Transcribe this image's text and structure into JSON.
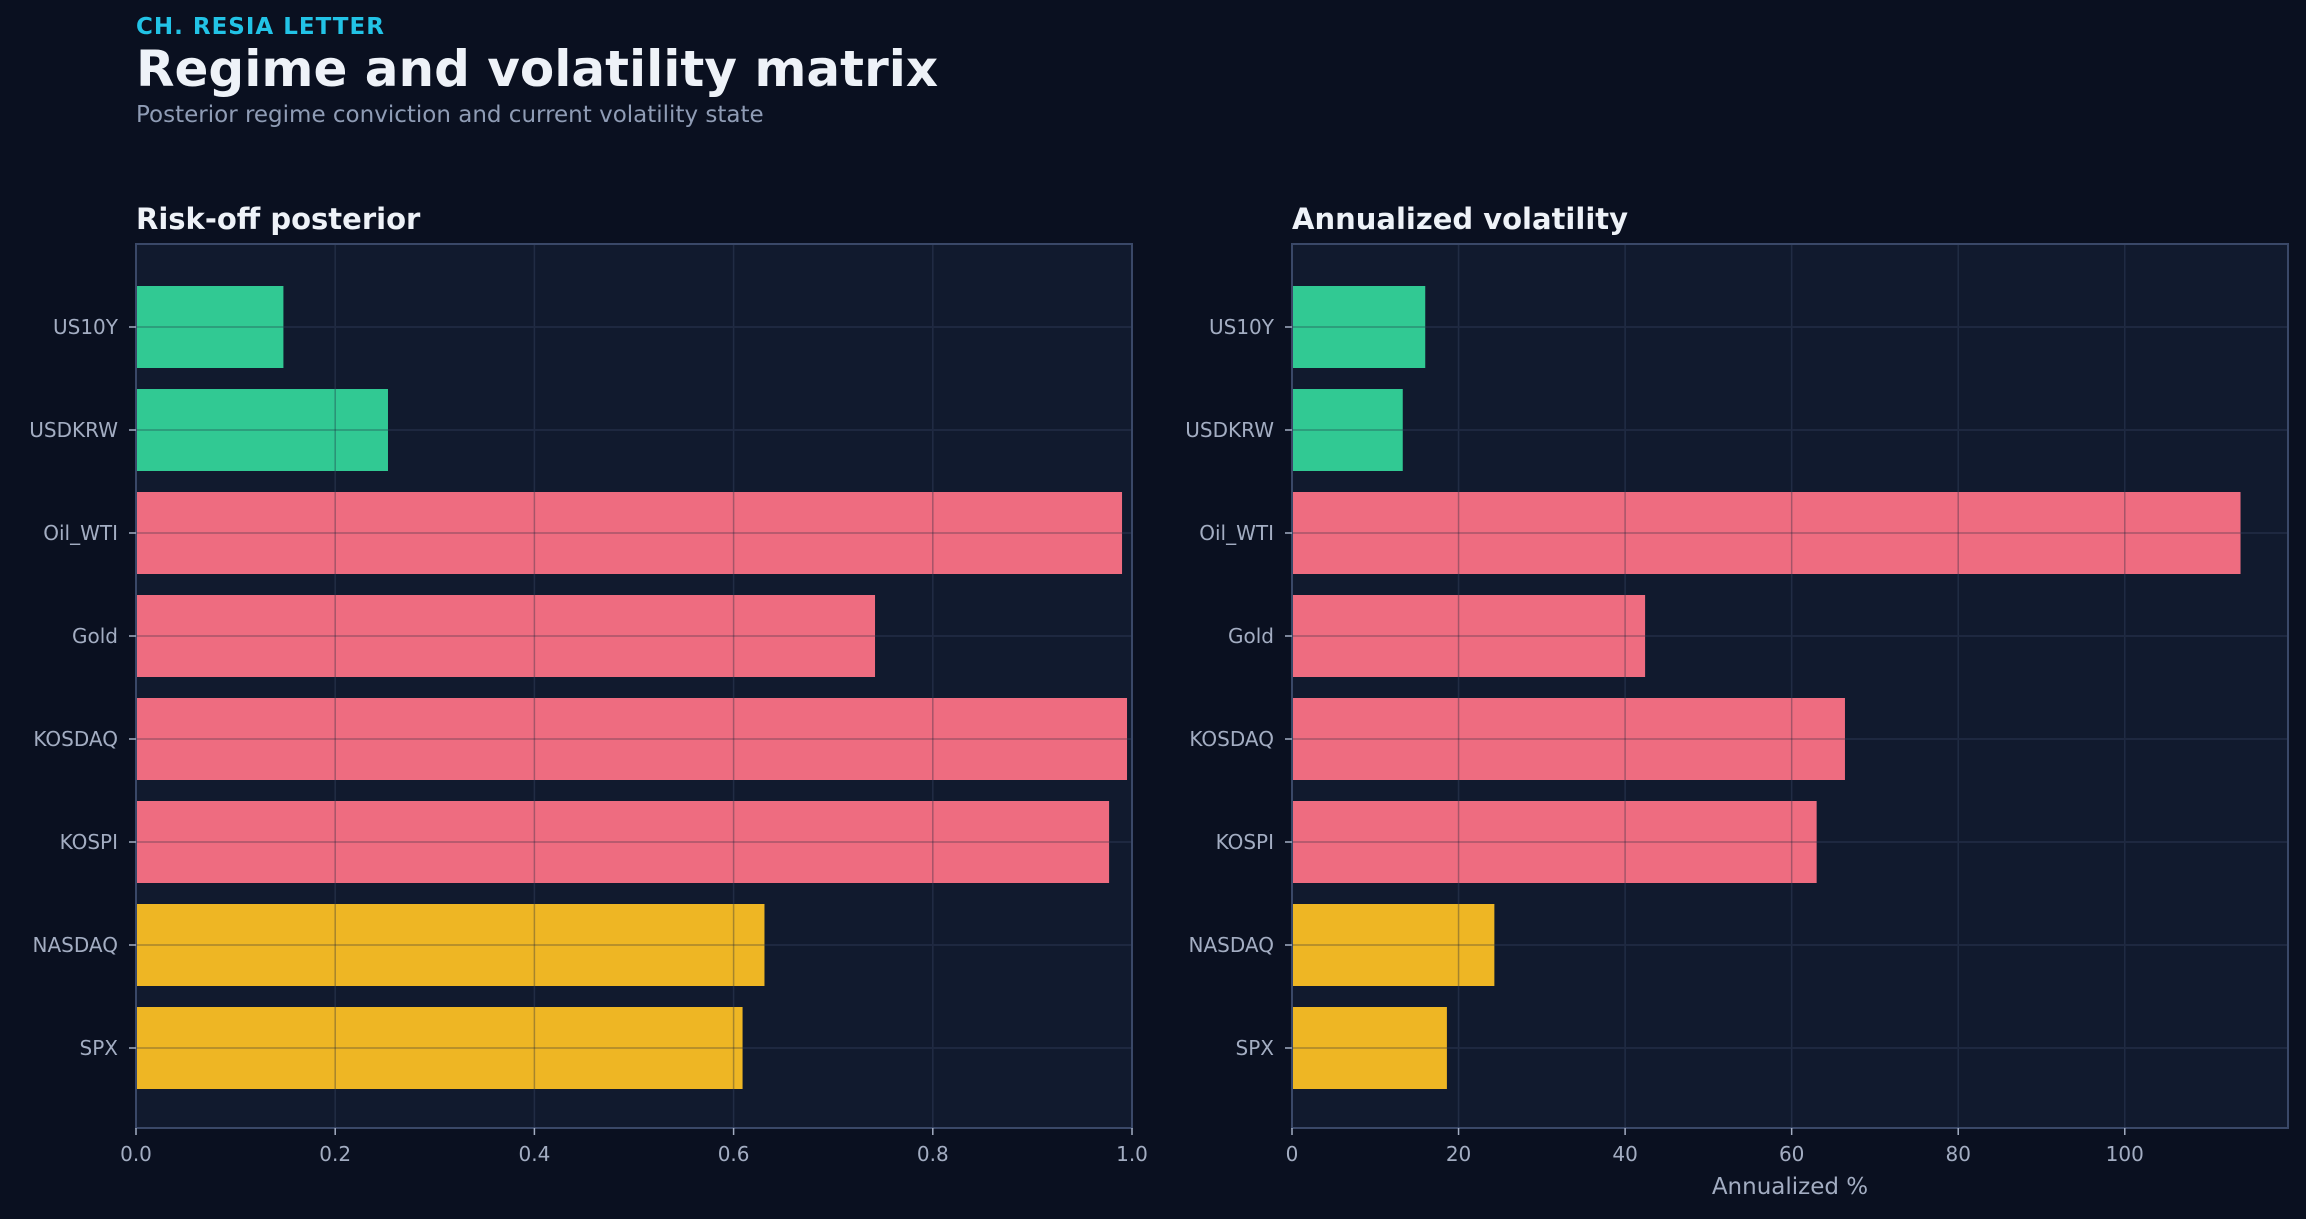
{
  "header": {
    "kicker": "CH. RESIA LETTER",
    "title": "Regime and volatility matrix",
    "subtitle": "Posterior regime conviction and current volatility state"
  },
  "colors": {
    "background": "#0a1020",
    "panel": "#111a2e",
    "panel_border": "#3a4868",
    "grid": "#24304a",
    "low": "#34d399",
    "high": "#fb7185",
    "mid": "#fbbf24"
  },
  "chart_data": [
    {
      "type": "bar",
      "orientation": "horizontal",
      "title": "Risk-off posterior",
      "xlabel": "",
      "ylabel": "",
      "categories": [
        "US10Y",
        "USDKRW",
        "Oil_WTI",
        "Gold",
        "KOSDAQ",
        "KOSPI",
        "NASDAQ",
        "SPX"
      ],
      "values": [
        0.148,
        0.253,
        0.99,
        0.742,
        0.995,
        0.977,
        0.631,
        0.609
      ],
      "bar_colors": [
        "low",
        "low",
        "high",
        "high",
        "high",
        "high",
        "mid",
        "mid"
      ],
      "xlim": [
        0,
        1.0
      ],
      "xticks": [
        0.0,
        0.2,
        0.4,
        0.6,
        0.8,
        1.0
      ],
      "xtick_labels": [
        "0.0",
        "0.2",
        "0.4",
        "0.6",
        "0.8",
        "1.0"
      ],
      "grid": true
    },
    {
      "type": "bar",
      "orientation": "horizontal",
      "title": "Annualized volatility",
      "xlabel": "Annualized %",
      "ylabel": "",
      "categories": [
        "US10Y",
        "USDKRW",
        "Oil_WTI",
        "Gold",
        "KOSDAQ",
        "KOSPI",
        "NASDAQ",
        "SPX"
      ],
      "values": [
        16.0,
        13.3,
        113.9,
        42.4,
        66.4,
        63.0,
        24.3,
        18.6
      ],
      "bar_colors": [
        "low",
        "low",
        "high",
        "high",
        "high",
        "high",
        "mid",
        "mid"
      ],
      "xlim": [
        0,
        119.6
      ],
      "xticks": [
        0,
        20,
        40,
        60,
        80,
        100
      ],
      "xtick_labels": [
        "0",
        "20",
        "40",
        "60",
        "80",
        "100"
      ],
      "grid": true
    }
  ]
}
